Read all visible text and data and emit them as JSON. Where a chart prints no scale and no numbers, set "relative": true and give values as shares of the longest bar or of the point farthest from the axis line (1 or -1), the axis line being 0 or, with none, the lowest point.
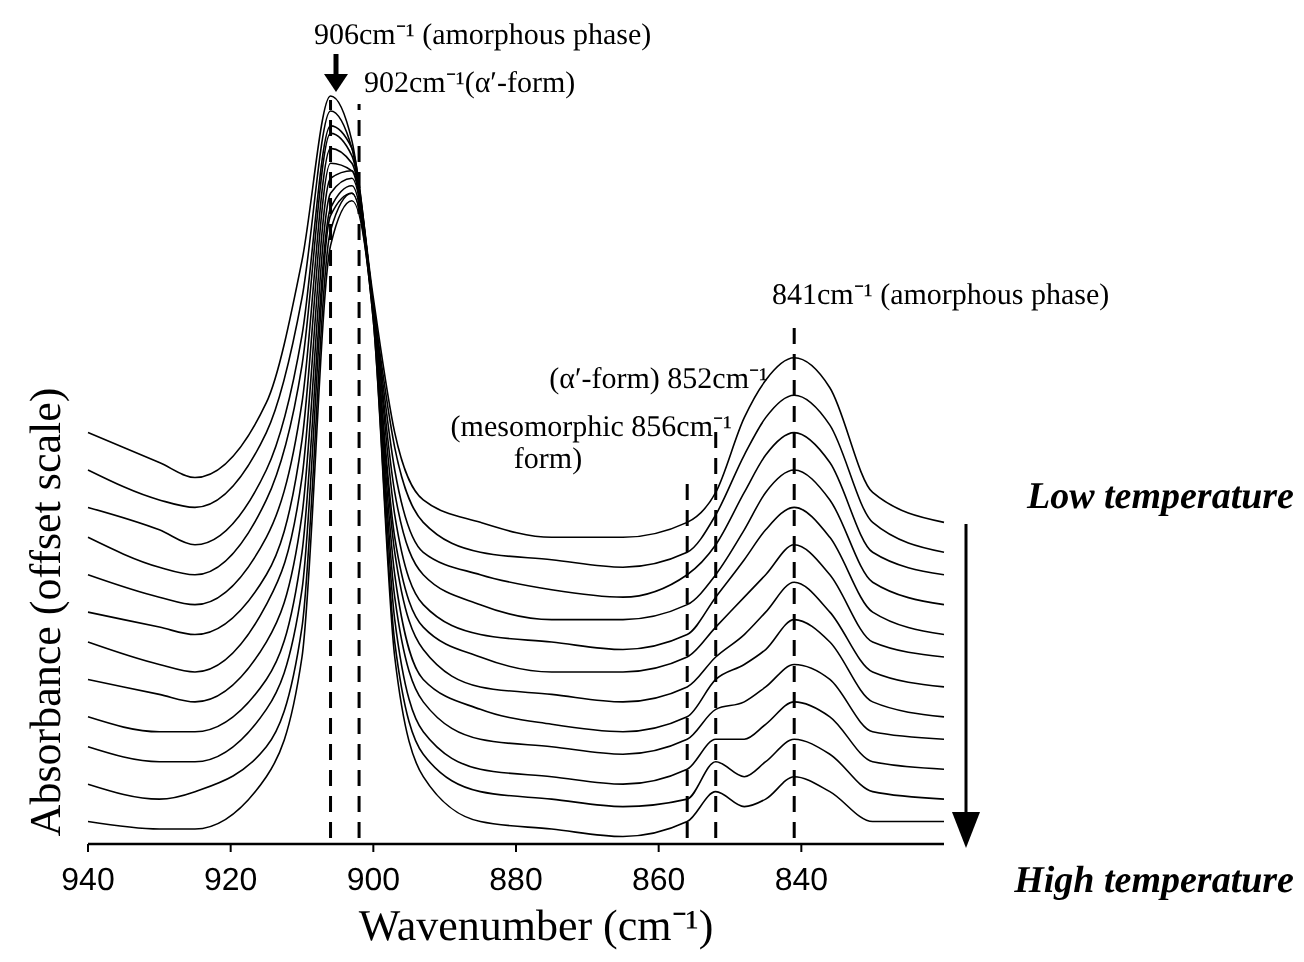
{
  "chart_data": {
    "type": "line",
    "relative": true,
    "xlabel": "Wavenumber (cm⁻¹)",
    "ylabel": "Absorbance (offset scale)",
    "xlim": [
      940,
      820
    ],
    "xticks": [
      940,
      920,
      900,
      880,
      860,
      840
    ],
    "grid": false,
    "x": [
      940,
      930,
      925,
      915,
      910,
      906,
      903,
      900,
      897,
      893,
      885,
      875,
      865,
      856,
      852,
      848,
      845,
      841,
      836,
      830,
      820
    ],
    "series": [
      {
        "color": "#000000",
        "values": [
          0.55,
          0.51,
          0.49,
          0.59,
          0.78,
          1.0,
          0.94,
          0.73,
          0.55,
          0.46,
          0.43,
          0.41,
          0.41,
          0.43,
          0.47,
          0.57,
          0.62,
          0.65,
          0.61,
          0.47,
          0.43
        ]
      },
      {
        "color": "#000000",
        "values": [
          0.5,
          0.46,
          0.45,
          0.55,
          0.73,
          0.98,
          0.93,
          0.72,
          0.53,
          0.43,
          0.39,
          0.38,
          0.37,
          0.39,
          0.44,
          0.52,
          0.57,
          0.6,
          0.56,
          0.43,
          0.39
        ]
      },
      {
        "color": "#000000",
        "values": [
          0.45,
          0.42,
          0.4,
          0.5,
          0.68,
          0.96,
          0.93,
          0.72,
          0.5,
          0.39,
          0.36,
          0.34,
          0.33,
          0.36,
          0.4,
          0.47,
          0.52,
          0.55,
          0.51,
          0.39,
          0.36
        ]
      },
      {
        "color": "#000000",
        "values": [
          0.41,
          0.37,
          0.36,
          0.46,
          0.64,
          0.95,
          0.92,
          0.72,
          0.47,
          0.36,
          0.32,
          0.3,
          0.3,
          0.32,
          0.36,
          0.42,
          0.47,
          0.5,
          0.46,
          0.35,
          0.32
        ]
      },
      {
        "color": "#000000",
        "values": [
          0.36,
          0.33,
          0.32,
          0.41,
          0.59,
          0.93,
          0.91,
          0.72,
          0.44,
          0.32,
          0.28,
          0.27,
          0.26,
          0.28,
          0.33,
          0.38,
          0.42,
          0.45,
          0.41,
          0.31,
          0.28
        ]
      },
      {
        "color": "#000000",
        "values": [
          0.31,
          0.29,
          0.28,
          0.36,
          0.54,
          0.91,
          0.9,
          0.71,
          0.41,
          0.29,
          0.25,
          0.23,
          0.23,
          0.25,
          0.29,
          0.33,
          0.36,
          0.4,
          0.36,
          0.27,
          0.25
        ]
      },
      {
        "color": "#000000",
        "values": [
          0.27,
          0.24,
          0.23,
          0.32,
          0.49,
          0.89,
          0.9,
          0.71,
          0.39,
          0.26,
          0.21,
          0.2,
          0.19,
          0.21,
          0.25,
          0.28,
          0.31,
          0.35,
          0.31,
          0.23,
          0.21
        ]
      },
      {
        "color": "#000000",
        "values": [
          0.22,
          0.2,
          0.19,
          0.27,
          0.44,
          0.87,
          0.89,
          0.71,
          0.36,
          0.22,
          0.18,
          0.16,
          0.15,
          0.17,
          0.22,
          0.24,
          0.26,
          0.3,
          0.27,
          0.19,
          0.17
        ]
      },
      {
        "color": "#000000",
        "values": [
          0.17,
          0.15,
          0.15,
          0.22,
          0.39,
          0.85,
          0.88,
          0.71,
          0.33,
          0.19,
          0.14,
          0.13,
          0.12,
          0.14,
          0.18,
          0.19,
          0.21,
          0.24,
          0.22,
          0.15,
          0.14
        ]
      },
      {
        "color": "#000000",
        "values": [
          0.13,
          0.11,
          0.11,
          0.18,
          0.34,
          0.84,
          0.87,
          0.71,
          0.3,
          0.15,
          0.1,
          0.09,
          0.08,
          0.1,
          0.14,
          0.14,
          0.16,
          0.19,
          0.17,
          0.11,
          0.1
        ]
      },
      {
        "color": "#000000",
        "values": [
          0.08,
          0.06,
          0.07,
          0.13,
          0.29,
          0.82,
          0.87,
          0.7,
          0.27,
          0.12,
          0.07,
          0.06,
          0.05,
          0.06,
          0.11,
          0.09,
          0.11,
          0.14,
          0.12,
          0.07,
          0.06
        ]
      },
      {
        "color": "#000000",
        "values": [
          0.03,
          0.02,
          0.02,
          0.09,
          0.25,
          0.8,
          0.86,
          0.7,
          0.25,
          0.09,
          0.03,
          0.02,
          0.01,
          0.03,
          0.07,
          0.05,
          0.06,
          0.09,
          0.07,
          0.03,
          0.03
        ]
      }
    ],
    "ref_lines": [
      {
        "axis": "x",
        "value": 906,
        "label": "906cm⁻¹ (amorphous phase)",
        "line_style": "dashed",
        "color": "#000000"
      },
      {
        "axis": "x",
        "value": 902,
        "label": "902cm⁻¹(α′-form)",
        "line_style": "dashed",
        "color": "#000000"
      },
      {
        "axis": "x",
        "value": 856,
        "label": "(mesomorphic 856cm⁻¹ form)",
        "line_style": "dashed",
        "color": "#000000"
      },
      {
        "axis": "x",
        "value": 852,
        "label": "(α′-form) 852cm⁻¹",
        "line_style": "dashed",
        "color": "#000000"
      },
      {
        "axis": "x",
        "value": 841,
        "label": "841cm⁻¹ (amorphous phase)",
        "line_style": "dashed",
        "color": "#000000"
      }
    ],
    "annotations": [
      "Low temperature",
      "High temperature"
    ]
  }
}
